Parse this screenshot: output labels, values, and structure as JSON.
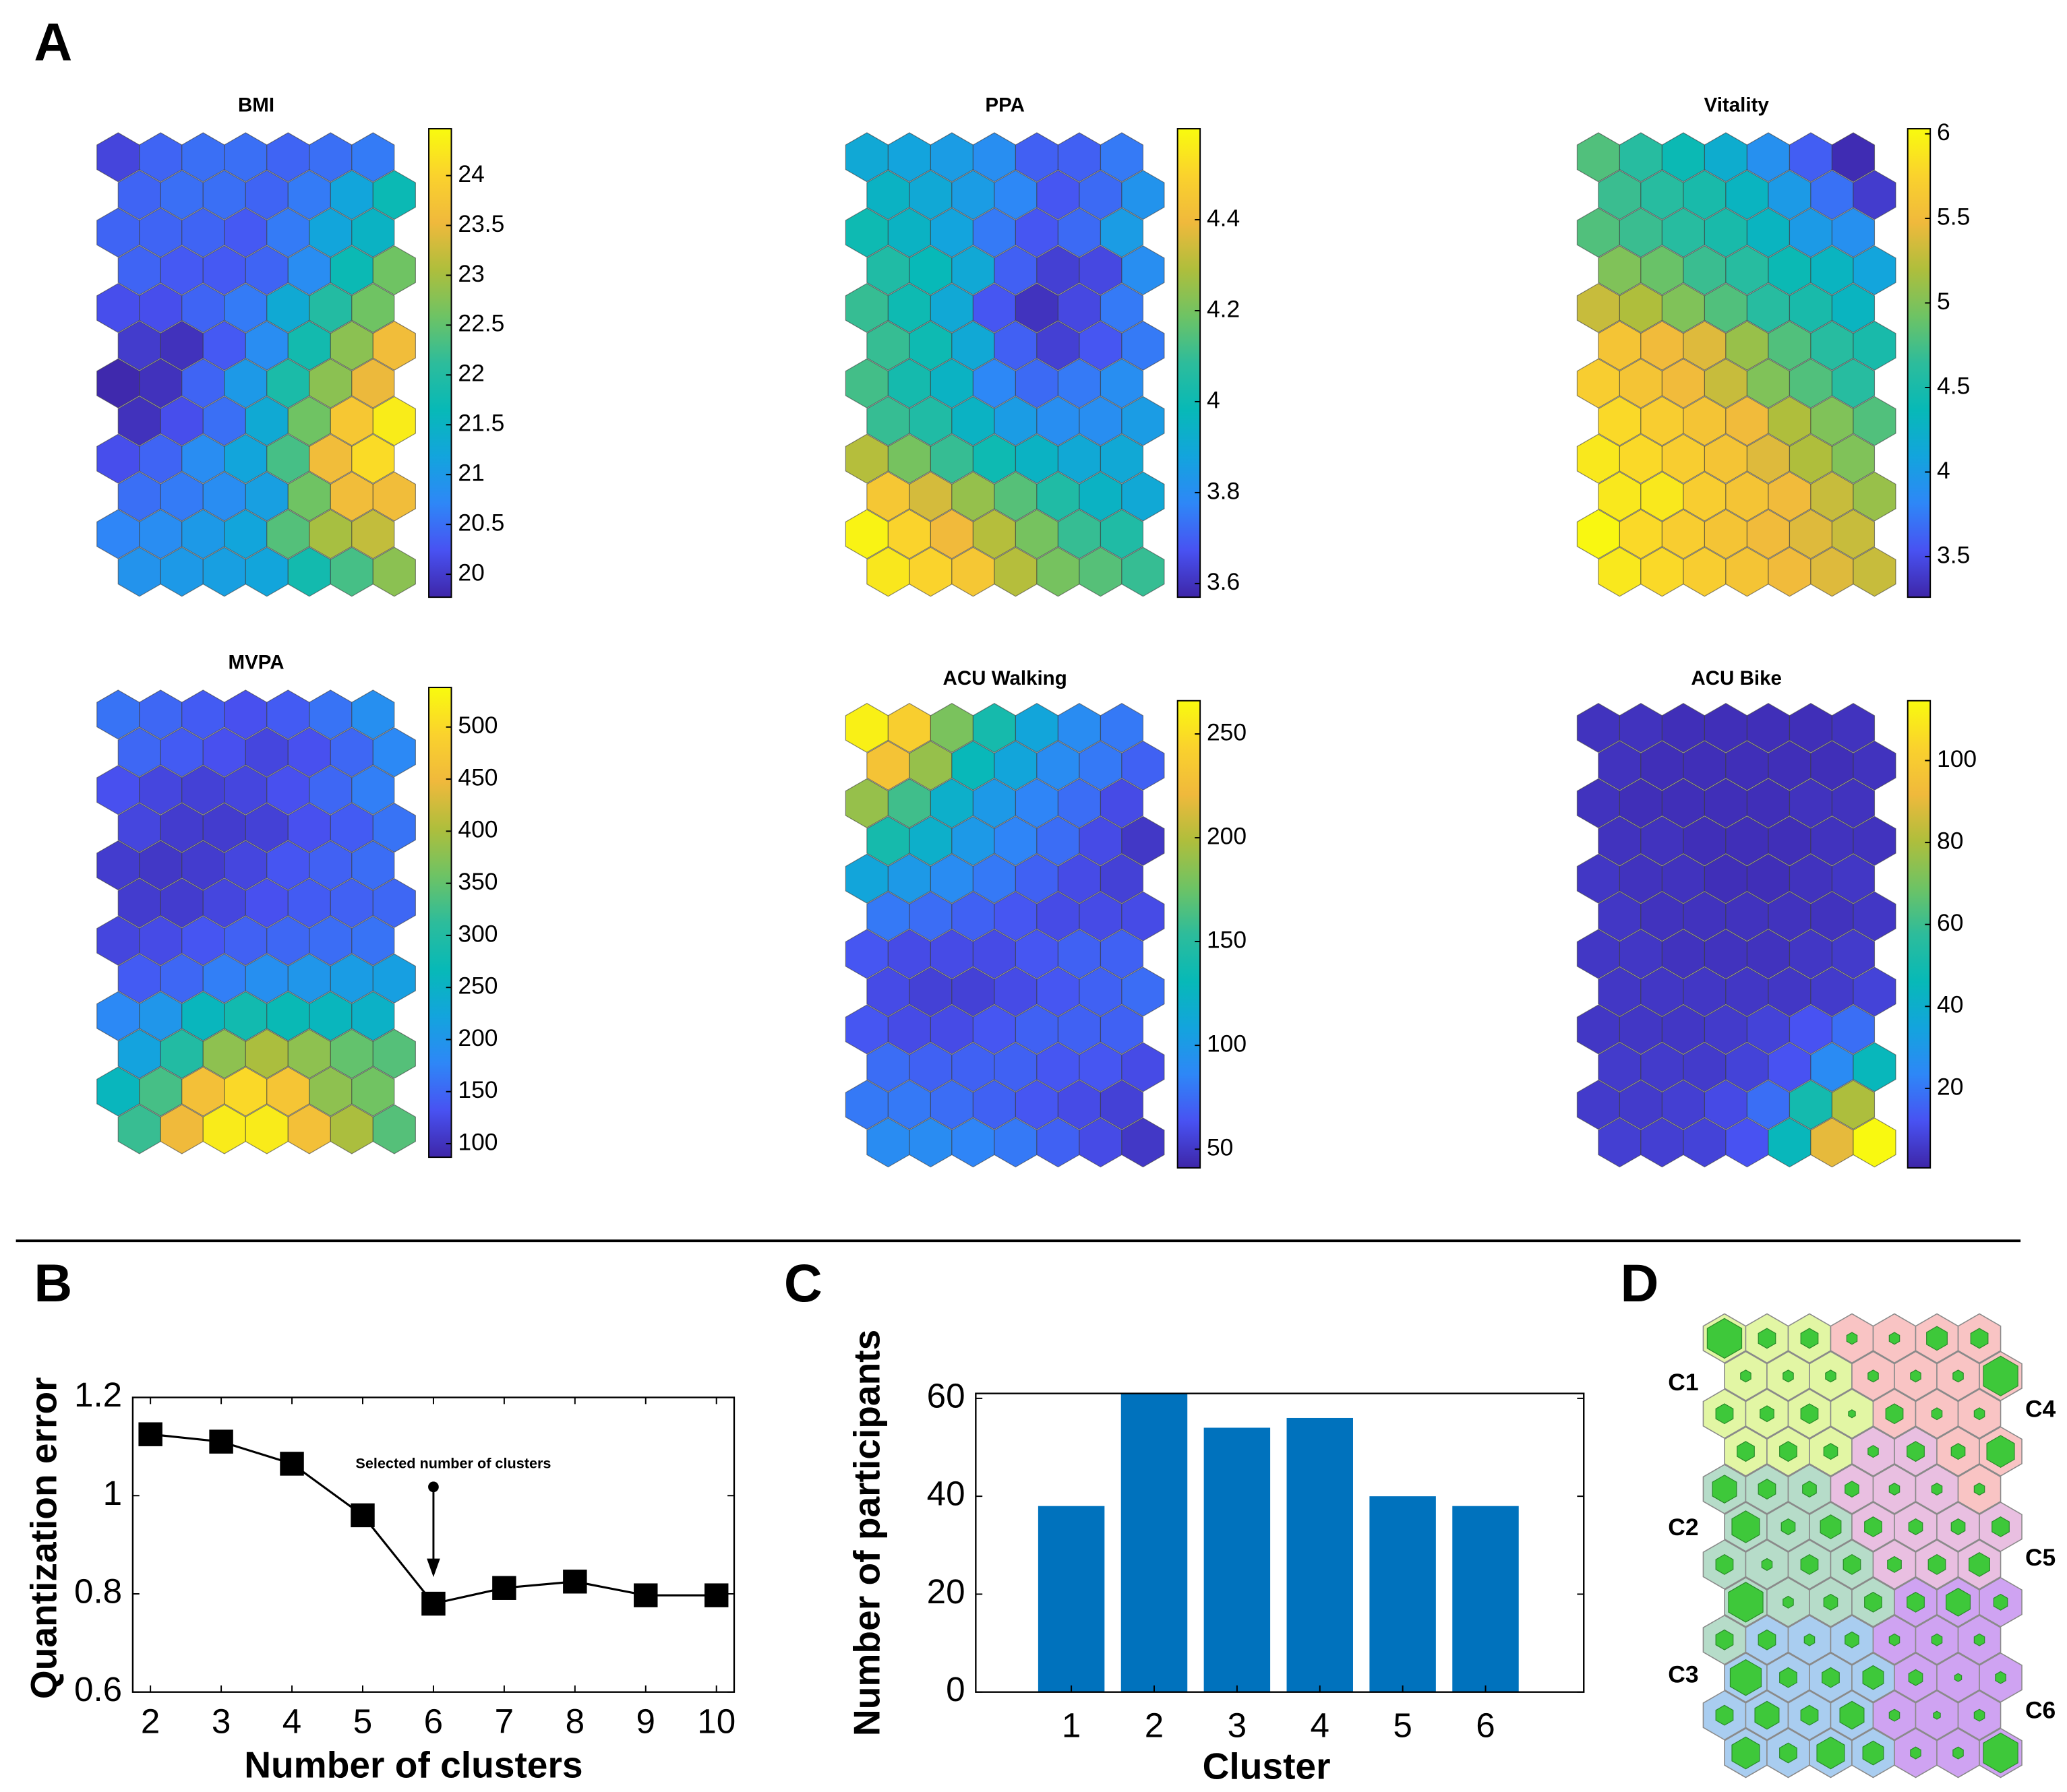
{
  "panel_labels": [
    "A",
    "B",
    "C",
    "D"
  ],
  "chart_data": [
    {
      "type": "hexmap",
      "title": "BMI",
      "colormap": "parula",
      "clim": [
        19.77,
        24.47
      ],
      "cticks": [
        20,
        20.5,
        21,
        21.5,
        22,
        22.5,
        23,
        23.5,
        24
      ],
      "values": [
        [
          20.1,
          20.4,
          20.5,
          20.5,
          20.4,
          20.5,
          20.6
        ],
        [
          20.4,
          20.5,
          20.5,
          20.4,
          20.6,
          21.2,
          21.7
        ],
        [
          20.4,
          20.4,
          20.4,
          20.3,
          20.6,
          21.2,
          21.5
        ],
        [
          20.4,
          20.3,
          20.3,
          20.4,
          20.8,
          21.7,
          22.6
        ],
        [
          20.2,
          20.2,
          20.4,
          20.6,
          21.3,
          22.0,
          22.6
        ],
        [
          20.0,
          19.9,
          20.3,
          20.8,
          21.8,
          22.8,
          23.6
        ],
        [
          19.8,
          19.9,
          20.4,
          21.0,
          21.9,
          22.8,
          23.5
        ],
        [
          19.9,
          20.2,
          20.5,
          21.3,
          22.6,
          23.8,
          24.3
        ],
        [
          20.2,
          20.4,
          20.8,
          21.2,
          22.3,
          23.6,
          24.1
        ],
        [
          20.5,
          20.6,
          20.8,
          21.1,
          22.6,
          23.6,
          23.6
        ],
        [
          20.7,
          20.8,
          21.0,
          21.2,
          22.4,
          23.0,
          23.2
        ],
        [
          20.9,
          21.0,
          21.1,
          21.2,
          21.8,
          22.3,
          22.8
        ]
      ]
    },
    {
      "type": "hexmap",
      "title": "PPA",
      "colormap": "parula",
      "clim": [
        3.57,
        4.6
      ],
      "cticks": [
        3.6,
        3.8,
        4,
        4.2,
        4.4
      ],
      "values": [
        [
          3.9,
          3.88,
          3.85,
          3.8,
          3.7,
          3.7,
          3.75
        ],
        [
          3.95,
          3.9,
          3.85,
          3.78,
          3.68,
          3.72,
          3.82
        ],
        [
          4.0,
          3.95,
          3.88,
          3.75,
          3.68,
          3.72,
          3.85
        ],
        [
          4.05,
          3.98,
          3.9,
          3.7,
          3.63,
          3.65,
          3.8
        ],
        [
          4.1,
          4.0,
          3.9,
          3.68,
          3.6,
          3.65,
          3.75
        ],
        [
          4.1,
          4.0,
          3.9,
          3.7,
          3.63,
          3.68,
          3.75
        ],
        [
          4.12,
          4.02,
          3.95,
          3.78,
          3.72,
          3.75,
          3.8
        ],
        [
          4.1,
          4.05,
          3.95,
          3.85,
          3.8,
          3.8,
          3.85
        ],
        [
          4.3,
          4.2,
          4.1,
          4.0,
          3.95,
          3.9,
          3.9
        ],
        [
          4.45,
          4.35,
          4.25,
          4.15,
          4.05,
          3.95,
          3.9
        ],
        [
          4.58,
          4.5,
          4.4,
          4.3,
          4.2,
          4.1,
          4.05
        ],
        [
          4.55,
          4.5,
          4.45,
          4.3,
          4.2,
          4.15,
          4.1
        ]
      ]
    },
    {
      "type": "hexmap",
      "title": "Vitality",
      "colormap": "parula",
      "clim": [
        3.26,
        6.03
      ],
      "cticks": [
        3.5,
        4,
        4.5,
        5,
        5.5,
        6
      ],
      "values": [
        [
          4.8,
          4.6,
          4.4,
          4.2,
          3.9,
          3.6,
          3.3
        ],
        [
          4.7,
          4.6,
          4.5,
          4.3,
          4.0,
          3.7,
          3.4
        ],
        [
          4.8,
          4.7,
          4.6,
          4.5,
          4.3,
          4.0,
          3.9
        ],
        [
          5.0,
          4.9,
          4.7,
          4.6,
          4.4,
          4.3,
          4.1
        ],
        [
          5.3,
          5.2,
          5.0,
          4.8,
          4.6,
          4.5,
          4.3
        ],
        [
          5.6,
          5.5,
          5.4,
          5.1,
          4.8,
          4.6,
          4.5
        ],
        [
          5.7,
          5.6,
          5.5,
          5.3,
          5.0,
          4.8,
          4.6
        ],
        [
          5.8,
          5.7,
          5.6,
          5.5,
          5.2,
          5.0,
          4.8
        ],
        [
          5.9,
          5.8,
          5.7,
          5.6,
          5.4,
          5.2,
          5.0
        ],
        [
          5.9,
          5.9,
          5.7,
          5.6,
          5.5,
          5.3,
          5.1
        ],
        [
          6.0,
          5.8,
          5.7,
          5.6,
          5.5,
          5.4,
          5.3
        ],
        [
          5.9,
          5.8,
          5.7,
          5.6,
          5.5,
          5.4,
          5.3
        ]
      ]
    },
    {
      "type": "hexmap",
      "title": "MVPA",
      "colormap": "parula",
      "clim": [
        87,
        538
      ],
      "cticks": [
        100,
        150,
        200,
        250,
        300,
        350,
        400,
        450,
        500
      ],
      "values": [
        [
          160,
          150,
          140,
          130,
          140,
          160,
          190
        ],
        [
          150,
          140,
          130,
          120,
          130,
          150,
          180
        ],
        [
          130,
          120,
          115,
          120,
          130,
          150,
          170
        ],
        [
          120,
          110,
          110,
          115,
          130,
          140,
          160
        ],
        [
          110,
          105,
          110,
          120,
          135,
          145,
          155
        ],
        [
          110,
          110,
          120,
          130,
          140,
          145,
          150
        ],
        [
          120,
          125,
          135,
          145,
          150,
          155,
          160
        ],
        [
          140,
          150,
          170,
          190,
          200,
          210,
          215
        ],
        [
          180,
          200,
          260,
          280,
          270,
          260,
          250
        ],
        [
          220,
          300,
          380,
          400,
          380,
          350,
          340
        ],
        [
          260,
          330,
          460,
          500,
          470,
          380,
          360
        ],
        [
          320,
          450,
          520,
          520,
          460,
          400,
          340
        ]
      ]
    },
    {
      "type": "hexmap",
      "title": "ACU Walking",
      "colormap": "parula",
      "clim": [
        41,
        266
      ],
      "cticks": [
        50,
        100,
        150,
        200,
        250
      ],
      "values": [
        [
          260,
          240,
          180,
          140,
          110,
          90,
          80
        ],
        [
          230,
          190,
          130,
          110,
          90,
          80,
          70
        ],
        [
          190,
          160,
          120,
          100,
          85,
          75,
          60
        ],
        [
          140,
          120,
          100,
          85,
          75,
          60,
          50
        ],
        [
          110,
          100,
          90,
          80,
          70,
          60,
          55
        ],
        [
          80,
          75,
          70,
          65,
          60,
          60,
          60
        ],
        [
          65,
          60,
          60,
          60,
          65,
          70,
          70
        ],
        [
          60,
          55,
          55,
          60,
          65,
          70,
          75
        ],
        [
          65,
          60,
          60,
          65,
          70,
          70,
          70
        ],
        [
          75,
          70,
          70,
          70,
          65,
          65,
          60
        ],
        [
          80,
          80,
          75,
          70,
          65,
          60,
          55
        ],
        [
          90,
          90,
          85,
          80,
          70,
          60,
          50
        ]
      ]
    },
    {
      "type": "hexmap",
      "title": "ACU Bike",
      "colormap": "parula",
      "clim": [
        0.6,
        114.6
      ],
      "cticks": [
        20,
        40,
        60,
        80,
        100
      ],
      "values": [
        [
          4,
          4,
          3,
          3,
          3,
          3,
          4
        ],
        [
          4,
          3,
          3,
          3,
          3,
          3,
          4
        ],
        [
          4,
          3,
          3,
          3,
          3,
          4,
          4
        ],
        [
          4,
          4,
          3,
          3,
          3,
          4,
          4
        ],
        [
          5,
          4,
          4,
          3,
          3,
          4,
          5
        ],
        [
          5,
          4,
          4,
          4,
          4,
          4,
          5
        ],
        [
          5,
          5,
          4,
          4,
          4,
          5,
          6
        ],
        [
          5,
          5,
          5,
          5,
          5,
          6,
          8
        ],
        [
          5,
          5,
          5,
          6,
          8,
          12,
          18
        ],
        [
          6,
          6,
          6,
          8,
          12,
          25,
          45
        ],
        [
          6,
          6,
          7,
          10,
          18,
          50,
          80
        ],
        [
          7,
          7,
          8,
          12,
          45,
          90,
          114
        ]
      ]
    },
    {
      "type": "line",
      "xlabel": "Number of clusters",
      "ylabel": "Quantization error",
      "x": [
        2,
        3,
        4,
        5,
        6,
        7,
        8,
        9,
        10
      ],
      "values": [
        1.125,
        1.11,
        1.065,
        0.96,
        0.78,
        0.812,
        0.825,
        0.797,
        0.797
      ],
      "xlim": [
        1.75,
        10.25
      ],
      "ylim": [
        0.6,
        1.2
      ],
      "xticks": [
        2,
        3,
        4,
        5,
        6,
        7,
        8,
        9,
        10
      ],
      "yticks": [
        0.6,
        0.8,
        1,
        1.2
      ],
      "color": "#000000",
      "annotation": {
        "text": "Selected number of clusters",
        "x": 6
      }
    },
    {
      "type": "bar",
      "xlabel": "Cluster",
      "ylabel": "Number of participants",
      "categories": [
        "1",
        "2",
        "3",
        "4",
        "5",
        "6"
      ],
      "values": [
        38,
        61,
        54,
        56,
        40,
        38
      ],
      "ylim": [
        0,
        61
      ],
      "yticks": [
        0,
        20,
        40,
        60
      ],
      "color": "#0072bd"
    },
    {
      "type": "hexcluster",
      "cluster_labels": [
        "C1",
        "C2",
        "C3",
        "C4",
        "C5",
        "C6"
      ],
      "cluster_colors": [
        "#e2f6a4",
        "#b6dcc9",
        "#a9cdf0",
        "#f9c4c4",
        "#e9bfe1",
        "#cfa3f2"
      ],
      "hit_color": "#3ec83a",
      "clusters": [
        [
          1,
          1,
          1,
          4,
          4,
          4,
          4
        ],
        [
          1,
          1,
          1,
          4,
          4,
          4,
          4
        ],
        [
          1,
          1,
          1,
          1,
          4,
          4,
          4
        ],
        [
          1,
          1,
          1,
          5,
          5,
          4,
          4
        ],
        [
          2,
          2,
          2,
          5,
          5,
          5,
          4
        ],
        [
          2,
          2,
          2,
          5,
          5,
          5,
          5
        ],
        [
          2,
          2,
          2,
          2,
          5,
          5,
          5
        ],
        [
          2,
          2,
          2,
          2,
          6,
          6,
          6
        ],
        [
          2,
          3,
          3,
          3,
          6,
          6,
          6
        ],
        [
          3,
          3,
          3,
          3,
          6,
          6,
          6
        ],
        [
          3,
          3,
          3,
          3,
          6,
          6,
          6
        ],
        [
          3,
          3,
          3,
          3,
          6,
          6,
          6
        ]
      ],
      "hits": [
        [
          1.0,
          0.5,
          0.5,
          0.3,
          0.3,
          0.6,
          0.5
        ],
        [
          0.3,
          0.3,
          0.3,
          0.3,
          0.3,
          0.3,
          1.0
        ],
        [
          0.5,
          0.4,
          0.5,
          0.2,
          0.5,
          0.3,
          0.3
        ],
        [
          0.5,
          0.5,
          0.4,
          0.3,
          0.5,
          0.4,
          0.8
        ],
        [
          0.7,
          0.5,
          0.4,
          0.4,
          0.3,
          0.3,
          0.3
        ],
        [
          0.8,
          0.4,
          0.6,
          0.5,
          0.4,
          0.4,
          0.5
        ],
        [
          0.5,
          0.3,
          0.5,
          0.5,
          0.4,
          0.5,
          0.6
        ],
        [
          1.0,
          0.3,
          0.4,
          0.5,
          0.5,
          0.7,
          0.4
        ],
        [
          0.5,
          0.5,
          0.3,
          0.4,
          0.3,
          0.3,
          0.3
        ],
        [
          0.9,
          0.5,
          0.5,
          0.6,
          0.4,
          0.2,
          0.3
        ],
        [
          0.5,
          0.7,
          0.5,
          0.7,
          0.3,
          0.2,
          0.3
        ],
        [
          0.8,
          0.5,
          0.8,
          0.6,
          0.3,
          0.3,
          1.0
        ]
      ]
    }
  ]
}
